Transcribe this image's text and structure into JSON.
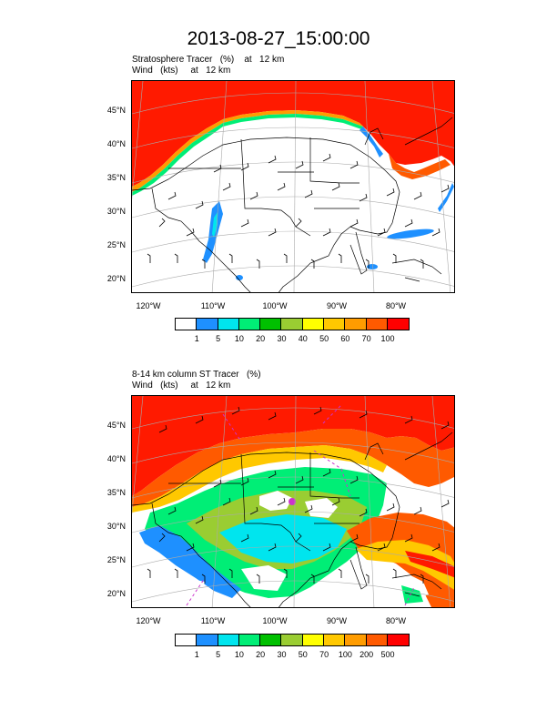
{
  "title": "2013-08-27_15:00:00",
  "panels": [
    {
      "line1": "Stratosphere Tracer   (%)    at   12 km",
      "line2": "Wind   (kts)     at   12 km",
      "lat_labels": [
        "45°N",
        "40°N",
        "35°N",
        "30°N",
        "25°N",
        "20°N"
      ],
      "lon_labels": [
        "120°W",
        "110°W",
        "100°W",
        "90°W",
        "80°W"
      ],
      "colorbar": {
        "colors": [
          "#ffffff",
          "#1e90ff",
          "#00e5ee",
          "#00ee76",
          "#00c000",
          "#9acd32",
          "#ffff00",
          "#ffc800",
          "#ff9c00",
          "#ff5a00",
          "#ff0000"
        ],
        "labels": [
          "1",
          "5",
          "10",
          "20",
          "30",
          "40",
          "50",
          "60",
          "70",
          "100"
        ]
      }
    },
    {
      "line1": "8-14 km column ST Tracer   (%)",
      "line2": "Wind   (kts)     at   12 km",
      "lat_labels": [
        "45°N",
        "40°N",
        "35°N",
        "30°N",
        "25°N",
        "20°N"
      ],
      "lon_labels": [
        "120°W",
        "110°W",
        "100°W",
        "90°W",
        "80°W"
      ],
      "colorbar": {
        "colors": [
          "#ffffff",
          "#1e90ff",
          "#00e5ee",
          "#00ee76",
          "#00c000",
          "#9acd32",
          "#ffff00",
          "#ffc800",
          "#ff9c00",
          "#ff5a00",
          "#ff0000"
        ],
        "labels": [
          "1",
          "5",
          "10",
          "20",
          "30",
          "50",
          "70",
          "100",
          "200",
          "500"
        ]
      }
    }
  ]
}
